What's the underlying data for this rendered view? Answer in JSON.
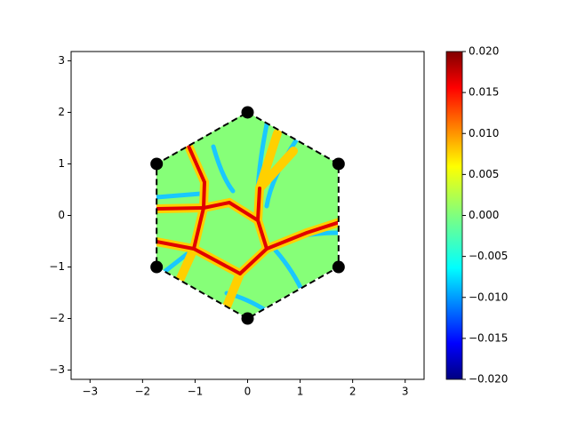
{
  "chart_data": {
    "type": "scatter",
    "x": [
      0,
      1.732,
      1.732,
      0,
      -1.732,
      -1.732
    ],
    "y": [
      2,
      1,
      -1,
      -2,
      -1,
      1
    ],
    "color": "#000000",
    "boundary_style": "dashed",
    "xlim": [
      -3.36,
      3.36
    ],
    "ylim": [
      -3.18,
      3.18
    ],
    "xticks": [
      {
        "value": -3,
        "label": "−3"
      },
      {
        "value": -2,
        "label": "−2"
      },
      {
        "value": -1,
        "label": "−1"
      },
      0,
      1,
      2,
      3
    ],
    "yticks": [
      {
        "value": -3,
        "label": "−3"
      },
      {
        "value": -2,
        "label": "−2"
      },
      {
        "value": -1,
        "label": "−1"
      },
      0,
      1,
      2,
      3
    ],
    "colorbar": {
      "colormap": "jet",
      "lim": [
        -0.02,
        0.02
      ],
      "ticks": [
        {
          "value": -0.02,
          "label": "−0.020"
        },
        {
          "value": -0.015,
          "label": "−0.015"
        },
        {
          "value": -0.01,
          "label": "−0.010"
        },
        {
          "value": -0.005,
          "label": "−0.005"
        },
        {
          "value": 0,
          "label": "0.000"
        },
        {
          "value": 0.005,
          "label": "0.005"
        },
        {
          "value": 0.01,
          "label": "0.010"
        },
        {
          "value": 0.015,
          "label": "0.015"
        },
        {
          "value": 0.02,
          "label": "0.020"
        }
      ]
    }
  }
}
